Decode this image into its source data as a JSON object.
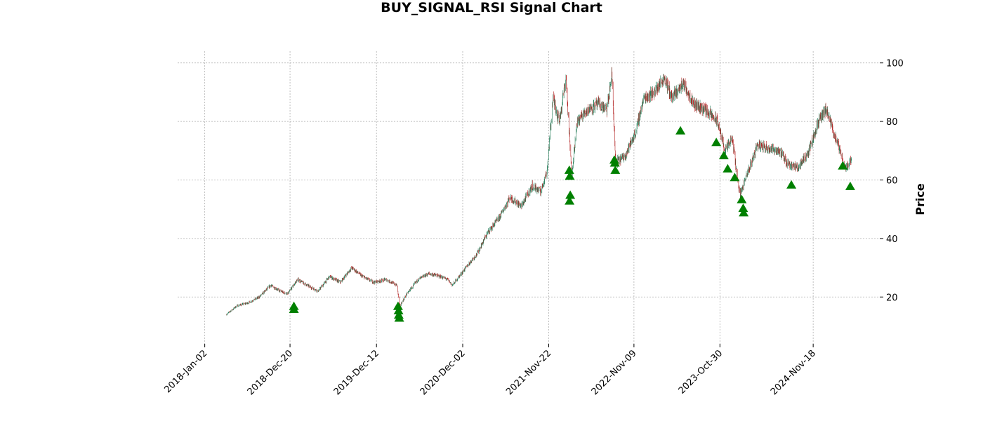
{
  "chart_data": {
    "type": "candlestick",
    "title": "BUY_SIGNAL_RSI Signal Chart",
    "ylabel": "Price",
    "xlabel": "",
    "ylim": [
      4,
      104
    ],
    "xlim": [
      "2017-09-12",
      "2025-08-20"
    ],
    "y_ticks": [
      20,
      40,
      60,
      80,
      100
    ],
    "x_ticks": [
      "2018-Jan-02",
      "2018-Dec-20",
      "2019-Dec-12",
      "2020-Dec-02",
      "2021-Nov-22",
      "2022-Nov-09",
      "2023-Oct-30",
      "2024-Nov-18"
    ],
    "x_tick_dates": [
      "2018-01-02",
      "2018-12-20",
      "2019-12-12",
      "2020-12-02",
      "2021-11-22",
      "2022-11-09",
      "2023-10-30",
      "2024-11-18"
    ],
    "grid": true,
    "up_color": "#1f7a55",
    "down_color": "#b22222",
    "signal_color": "#008000",
    "price_path": [
      [
        "2018-04-01",
        14
      ],
      [
        "2018-05-15",
        17
      ],
      [
        "2018-07-01",
        18
      ],
      [
        "2018-08-15",
        20
      ],
      [
        "2018-10-01",
        24
      ],
      [
        "2018-11-10",
        22
      ],
      [
        "2018-12-10",
        21
      ],
      [
        "2019-01-20",
        26
      ],
      [
        "2019-03-01",
        24
      ],
      [
        "2019-04-15",
        22
      ],
      [
        "2019-06-01",
        27
      ],
      [
        "2019-07-15",
        25
      ],
      [
        "2019-09-01",
        30
      ],
      [
        "2019-10-15",
        27
      ],
      [
        "2019-12-01",
        25
      ],
      [
        "2020-01-20",
        26
      ],
      [
        "2020-03-05",
        24
      ],
      [
        "2020-03-18",
        17
      ],
      [
        "2020-04-15",
        21
      ],
      [
        "2020-06-01",
        26
      ],
      [
        "2020-07-15",
        28
      ],
      [
        "2020-09-01",
        27
      ],
      [
        "2020-10-01",
        26
      ],
      [
        "2020-10-20",
        24
      ],
      [
        "2020-12-15",
        30
      ],
      [
        "2021-02-01",
        35
      ],
      [
        "2021-03-15",
        42
      ],
      [
        "2021-05-01",
        47
      ],
      [
        "2021-06-15",
        54
      ],
      [
        "2021-08-01",
        51
      ],
      [
        "2021-09-15",
        58
      ],
      [
        "2021-10-20",
        56
      ],
      [
        "2021-11-15",
        63
      ],
      [
        "2021-12-10",
        88
      ],
      [
        "2022-01-05",
        80
      ],
      [
        "2022-02-01",
        95
      ],
      [
        "2022-02-25",
        62
      ],
      [
        "2022-03-20",
        80
      ],
      [
        "2022-05-01",
        84
      ],
      [
        "2022-06-15",
        86
      ],
      [
        "2022-07-20",
        84
      ],
      [
        "2022-08-10",
        96
      ],
      [
        "2022-08-25",
        66
      ],
      [
        "2022-10-01",
        68
      ],
      [
        "2022-11-15",
        76
      ],
      [
        "2022-12-20",
        88
      ],
      [
        "2023-02-01",
        90
      ],
      [
        "2023-03-15",
        95
      ],
      [
        "2023-04-15",
        88
      ],
      [
        "2023-06-01",
        93
      ],
      [
        "2023-07-15",
        86
      ],
      [
        "2023-09-01",
        84
      ],
      [
        "2023-10-20",
        80
      ],
      [
        "2023-11-20",
        70
      ],
      [
        "2023-12-20",
        74
      ],
      [
        "2024-01-20",
        55
      ],
      [
        "2024-02-20",
        62
      ],
      [
        "2024-04-01",
        72
      ],
      [
        "2024-05-15",
        71
      ],
      [
        "2024-07-01",
        70
      ],
      [
        "2024-08-01",
        66
      ],
      [
        "2024-09-15",
        64
      ],
      [
        "2024-11-01",
        70
      ],
      [
        "2024-12-10",
        80
      ],
      [
        "2025-01-10",
        84
      ],
      [
        "2025-02-20",
        74
      ],
      [
        "2025-04-01",
        64
      ],
      [
        "2025-04-25",
        67
      ]
    ],
    "signals": [
      [
        "2019-01-05",
        17
      ],
      [
        "2019-01-05",
        16
      ],
      [
        "2020-03-10",
        17
      ],
      [
        "2020-03-12",
        15.5
      ],
      [
        "2020-03-13",
        14
      ],
      [
        "2020-03-15",
        13
      ],
      [
        "2022-02-15",
        63.5
      ],
      [
        "2022-02-17",
        61.5
      ],
      [
        "2022-02-19",
        55
      ],
      [
        "2022-02-16",
        53
      ],
      [
        "2022-08-20",
        67
      ],
      [
        "2022-08-22",
        66
      ],
      [
        "2022-08-24",
        63.5
      ],
      [
        "2023-05-20",
        77
      ],
      [
        "2023-10-15",
        73
      ],
      [
        "2023-11-15",
        68.5
      ],
      [
        "2023-12-01",
        64
      ],
      [
        "2023-12-30",
        61
      ],
      [
        "2024-01-28",
        53.5
      ],
      [
        "2024-02-03",
        50.5
      ],
      [
        "2024-02-05",
        49
      ],
      [
        "2024-08-20",
        58.5
      ],
      [
        "2025-03-20",
        65
      ],
      [
        "2025-04-20",
        58
      ]
    ]
  }
}
